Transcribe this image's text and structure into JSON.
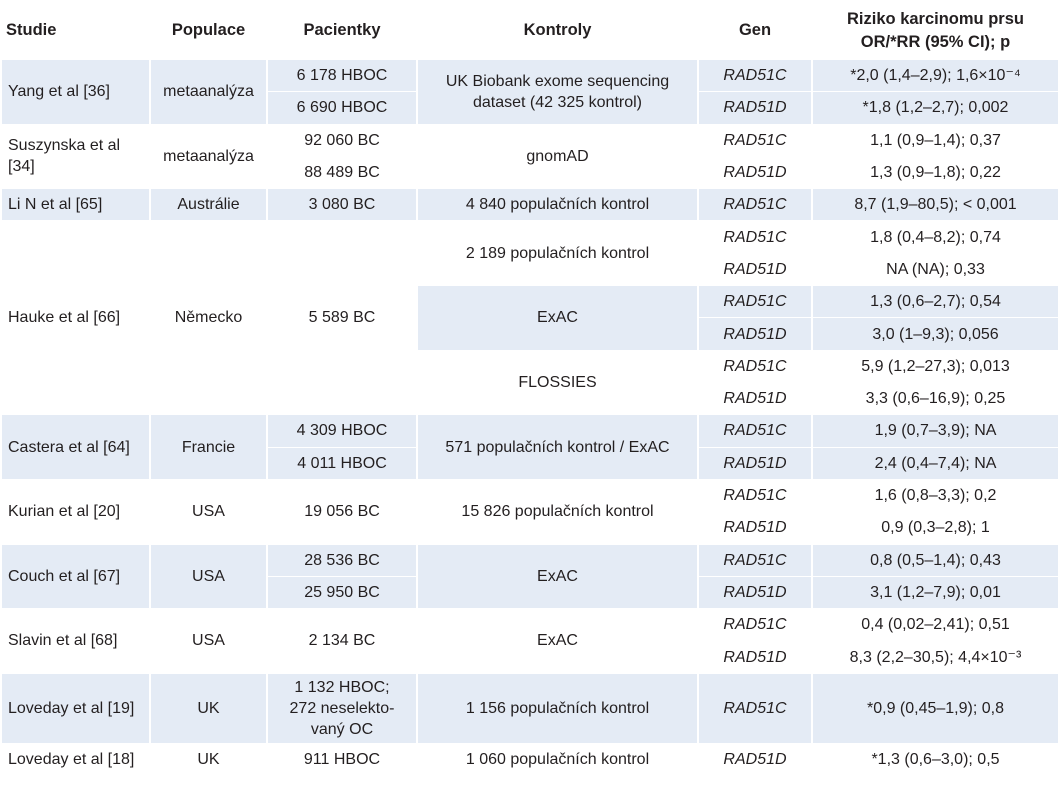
{
  "headers": {
    "studie": "Studie",
    "populace": "Populace",
    "pacientky": "Pacientky",
    "kontroly": "Kontroly",
    "gen": "Gen",
    "riziko_line1": "Riziko karcinomu prsu",
    "riziko_line2": "OR/*RR (95% CI); p"
  },
  "studies": [
    {
      "studie": "Yang et al [36]",
      "populace": "metaanalýza",
      "shaded": true,
      "rows": [
        {
          "pacientky": "6 178 HBOC",
          "gen": "RAD51C",
          "riziko": "*2,0 (1,4–2,9); 1,6×10⁻⁴"
        },
        {
          "pacientky": "6 690 HBOC",
          "gen": "RAD51D",
          "riziko": "*1,8 (1,2–2,7); 0,002"
        }
      ],
      "kontroly": [
        {
          "text": "UK Biobank exome sequencing dataset (42 325 kontrol)",
          "span": 2,
          "shaded": true
        }
      ]
    },
    {
      "studie": "Suszynska et al [34]",
      "populace": "metaanalýza",
      "shaded": false,
      "rows": [
        {
          "pacientky": "92 060 BC",
          "gen": "RAD51C",
          "riziko": "1,1 (0,9–1,4); 0,37"
        },
        {
          "pacientky": "88 489 BC",
          "gen": "RAD51D",
          "riziko": "1,3 (0,9–1,8); 0,22"
        }
      ],
      "kontroly": [
        {
          "text": "gnomAD",
          "span": 2,
          "shaded": false
        }
      ]
    },
    {
      "studie": "Li N et al [65]",
      "populace": "Austrálie",
      "shaded": true,
      "rows": [
        {
          "pacientky": "3 080 BC",
          "gen": "RAD51C",
          "riziko": "8,7 (1,9–80,5); < 0,001"
        }
      ],
      "kontroly": [
        {
          "text": "4 840 populačních kontrol",
          "span": 1,
          "shaded": true
        }
      ]
    },
    {
      "studie": "Hauke et al [66]",
      "populace": "Německo",
      "shaded": false,
      "pacientky_merged": "5 589 BC",
      "rows": [
        {
          "gen": "RAD51C",
          "riziko": "1,8 (0,4–8,2); 0,74"
        },
        {
          "gen": "RAD51D",
          "riziko": "NA (NA); 0,33"
        },
        {
          "gen": "RAD51C",
          "riziko": "1,3 (0,6–2,7); 0,54",
          "shaded": true
        },
        {
          "gen": "RAD51D",
          "riziko": "3,0 (1–9,3); 0,056",
          "shaded": true
        },
        {
          "gen": "RAD51C",
          "riziko": "5,9 (1,2–27,3); 0,013"
        },
        {
          "gen": "RAD51D",
          "riziko": "3,3 (0,6–16,9); 0,25"
        }
      ],
      "kontroly": [
        {
          "text": "2 189 populačních kontrol",
          "span": 2,
          "shaded": false
        },
        {
          "text": "ExAC",
          "span": 2,
          "shaded": true
        },
        {
          "text": "FLOSSIES",
          "span": 2,
          "shaded": false
        }
      ]
    },
    {
      "studie": "Castera et al [64]",
      "populace": "Francie",
      "shaded": true,
      "rows": [
        {
          "pacientky": "4 309 HBOC",
          "gen": "RAD51C",
          "riziko": "1,9 (0,7–3,9); NA"
        },
        {
          "pacientky": "4 011 HBOC",
          "gen": "RAD51D",
          "riziko": "2,4 (0,4–7,4); NA"
        }
      ],
      "kontroly": [
        {
          "text": "571 populačních kontrol / ExAC",
          "span": 2,
          "shaded": true
        }
      ]
    },
    {
      "studie": "Kurian et al [20]",
      "populace": "USA",
      "shaded": false,
      "pacientky_merged": "19 056 BC",
      "rows": [
        {
          "gen": "RAD51C",
          "riziko": "1,6 (0,8–3,3); 0,2"
        },
        {
          "gen": "RAD51D",
          "riziko": "0,9 (0,3–2,8); 1"
        }
      ],
      "kontroly": [
        {
          "text": "15 826 populačních kontrol",
          "span": 2,
          "shaded": false
        }
      ]
    },
    {
      "studie": "Couch et al [67]",
      "populace": "USA",
      "shaded": true,
      "rows": [
        {
          "pacientky": "28 536 BC",
          "gen": "RAD51C",
          "riziko": "0,8 (0,5–1,4); 0,43"
        },
        {
          "pacientky": "25 950 BC",
          "gen": "RAD51D",
          "riziko": "3,1 (1,2–7,9); 0,01"
        }
      ],
      "kontroly": [
        {
          "text": "ExAC",
          "span": 2,
          "shaded": true
        }
      ]
    },
    {
      "studie": "Slavin et al [68]",
      "populace": "USA",
      "shaded": false,
      "pacientky_merged": "2 134 BC",
      "rows": [
        {
          "gen": "RAD51C",
          "riziko": "0,4 (0,02–2,41); 0,51"
        },
        {
          "gen": "RAD51D",
          "riziko": "8,3 (2,2–30,5); 4,4×10⁻³"
        }
      ],
      "kontroly": [
        {
          "text": "ExAC",
          "span": 2,
          "shaded": false
        }
      ]
    },
    {
      "studie": "Loveday et al [19]",
      "populace": "UK",
      "shaded": true,
      "rows": [
        {
          "pacientky": "1 132 HBOC; 272 neselekto-vaný OC",
          "gen": "RAD51C",
          "riziko": "*0,9 (0,45–1,9); 0,8",
          "tall": true
        }
      ],
      "kontroly": [
        {
          "text": "1 156 populačních kontrol",
          "span": 1,
          "shaded": true
        }
      ]
    },
    {
      "studie": "Loveday et al [18]",
      "populace": "UK",
      "shaded": false,
      "rows": [
        {
          "pacientky": "911 HBOC",
          "gen": "RAD51D",
          "riziko": "*1,3 (0,6–3,0); 0,5"
        }
      ],
      "kontroly": [
        {
          "text": "1 060 populačních kontrol",
          "span": 1,
          "shaded": false
        }
      ]
    }
  ]
}
